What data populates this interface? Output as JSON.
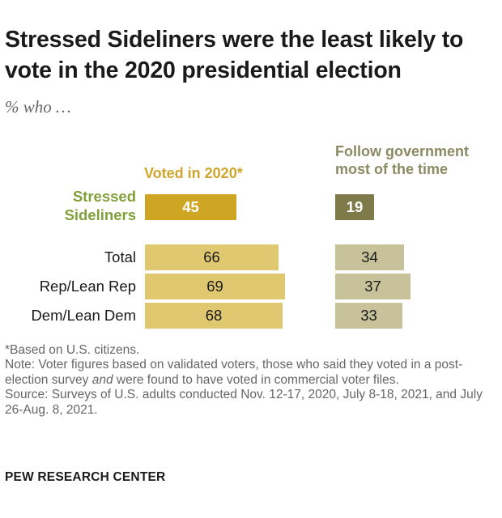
{
  "title": "Stressed Sideliners were the least likely to vote in the 2020 presidential election",
  "subtitle": "% who …",
  "chart_data": {
    "type": "bar",
    "columns": [
      {
        "name": "Voted in 2020*",
        "color": "#e0c870",
        "highlight_color": "#cfa524"
      },
      {
        "name": "Follow government most of the time",
        "color": "#c7c29a",
        "highlight_color": "#7f7a4a"
      }
    ],
    "categories": [
      "Stressed Sideliners",
      "Total",
      "Rep/Lean Rep",
      "Dem/Lean Dem"
    ],
    "series": [
      {
        "name": "Voted in 2020*",
        "values": [
          45,
          66,
          69,
          68
        ]
      },
      {
        "name": "Follow government most of the time",
        "values": [
          19,
          34,
          37,
          33
        ]
      }
    ],
    "highlight_category": "Stressed Sideliners",
    "highlight_label_color": "#82a03a"
  },
  "notes": {
    "footnote": "*Based on U.S. citizens.",
    "note_pre": "Note: Voter figures based on validated voters, those who said they voted in a post-election survey ",
    "note_em": "and",
    "note_post": " were found to have voted in commercial voter files.",
    "source": "Source: Surveys of U.S. adults conducted Nov. 12-17, 2020, July 8-18, 2021, and July 26-Aug. 8, 2021."
  },
  "brand": "PEW RESEARCH CENTER"
}
